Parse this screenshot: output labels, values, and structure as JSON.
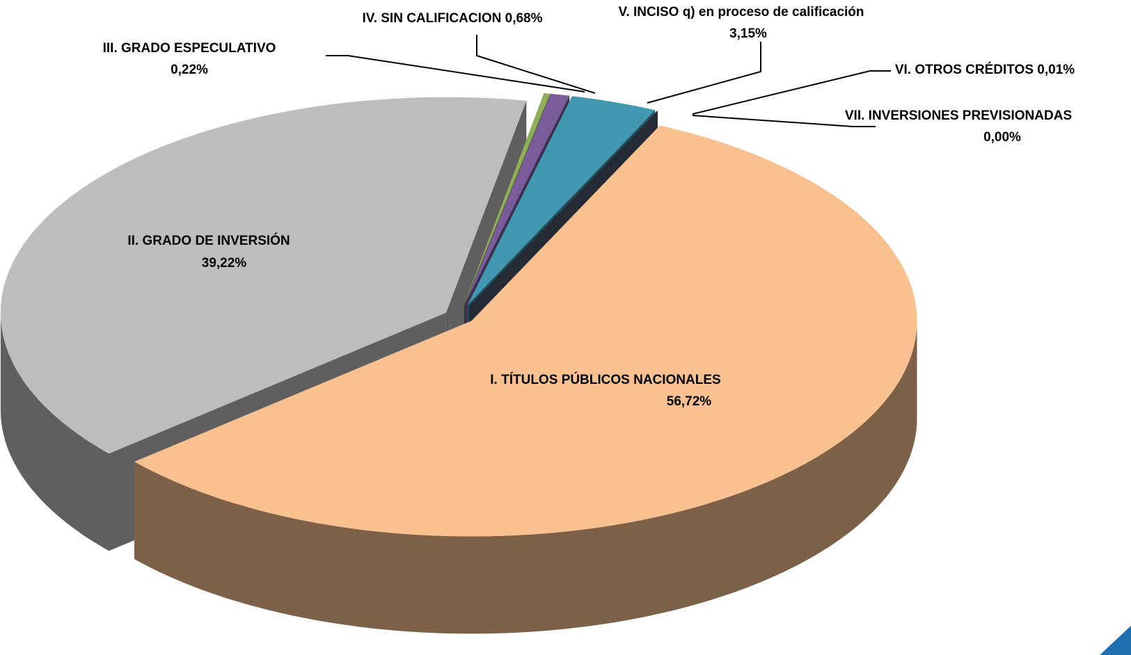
{
  "chart_data": {
    "type": "pie",
    "categories": [
      "I. TÍTULOS PÚBLICOS NACIONALES",
      "II. GRADO DE INVERSIÓN",
      "III. GRADO ESPECULATIVO",
      "IV. SIN CALIFICACION",
      "V. INCISO q) en proceso de calificación",
      "VI. OTROS CRÉDITOS",
      "VII. INVERSIONES PREVISIONADAS"
    ],
    "values": [
      56.72,
      39.22,
      0.22,
      0.68,
      3.15,
      0.01,
      0.0
    ],
    "value_labels": [
      "56,72%",
      "39,22%",
      "0,22%",
      "0,68%",
      "3,15%",
      "0,01%",
      "0,00%"
    ],
    "colors": [
      "#f9c090",
      "#bdbdbd",
      "#8fae5a",
      "#7a5c9a",
      "#4198b0",
      "#3f7f8f",
      "#4a5568"
    ]
  }
}
